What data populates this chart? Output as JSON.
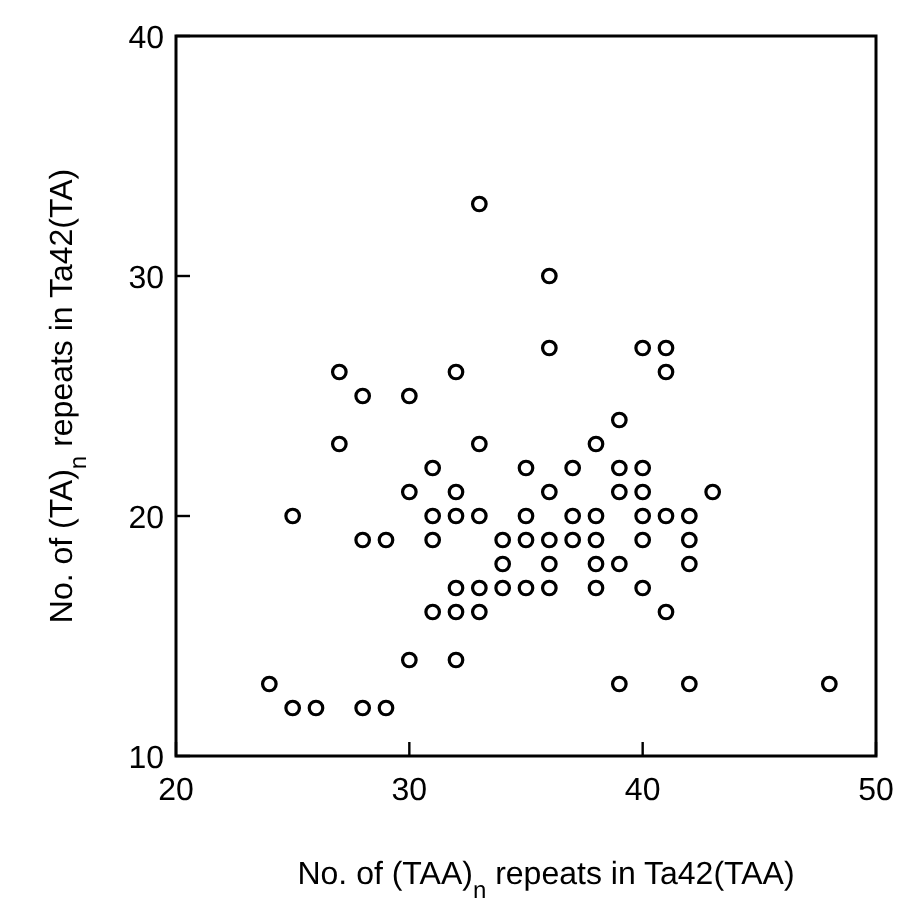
{
  "chart_data": {
    "type": "scatter",
    "xlabel": "No. of (TAA)$_{n}$ repeats in Ta42(TAA)",
    "ylabel": "No. of (TA)$_{n}$ repeats in Ta42(TA)",
    "xlim": [
      20,
      50
    ],
    "xticks": [
      20,
      30,
      40,
      50
    ],
    "ylim": [
      10,
      40
    ],
    "yticks": [
      10,
      20,
      30,
      40
    ],
    "marker": "circle",
    "grid": false,
    "series": [
      {
        "color": "#000000",
        "x": [
          33,
          36,
          36,
          40,
          41,
          27,
          32,
          41,
          28,
          30,
          39,
          27,
          33,
          38,
          31,
          35,
          37,
          39,
          40,
          30,
          32,
          36,
          39,
          40,
          43,
          25,
          31,
          32,
          33,
          35,
          37,
          38,
          40,
          41,
          42,
          28,
          29,
          31,
          34,
          35,
          36,
          37,
          38,
          40,
          42,
          34,
          36,
          38,
          39,
          42,
          32,
          33,
          34,
          35,
          36,
          38,
          40,
          31,
          32,
          33,
          41,
          30,
          32,
          24,
          39,
          42,
          48,
          25,
          26,
          28,
          29
        ],
        "values": [
          33,
          30,
          27,
          27,
          27,
          26,
          26,
          26,
          25,
          25,
          24,
          23,
          23,
          23,
          22,
          22,
          22,
          22,
          22,
          21,
          21,
          21,
          21,
          21,
          21,
          20,
          20,
          20,
          20,
          20,
          20,
          20,
          20,
          20,
          20,
          19,
          19,
          19,
          19,
          19,
          19,
          19,
          19,
          19,
          19,
          18,
          18,
          18,
          18,
          18,
          17,
          17,
          17,
          17,
          17,
          17,
          17,
          16,
          16,
          16,
          16,
          14,
          14,
          13,
          13,
          13,
          13,
          12,
          12,
          12,
          12
        ]
      }
    ]
  }
}
